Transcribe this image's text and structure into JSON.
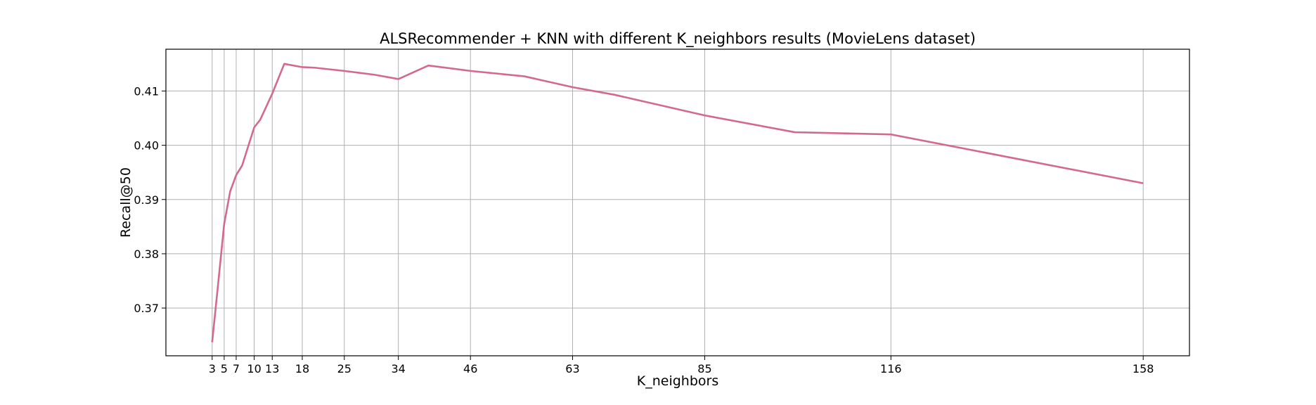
{
  "chart_data": {
    "type": "line",
    "title": "ALSRecommender + KNN with different K_neighbors results (MovieLens dataset)",
    "xlabel": "K_neighbors",
    "ylabel": "Recall@50",
    "x_ticks": [
      3,
      5,
      7,
      10,
      13,
      18,
      25,
      34,
      46,
      63,
      85,
      116,
      158
    ],
    "y_ticks": [
      0.37,
      0.38,
      0.39,
      0.4,
      0.41
    ],
    "y_tick_labels": [
      "0.37",
      "0.38",
      "0.39",
      "0.40",
      "0.41"
    ],
    "xlim": [
      -4.7,
      165.7
    ],
    "ylim": [
      0.3612,
      0.4177
    ],
    "grid": true,
    "series": [
      {
        "color": "#d4698f",
        "x": [
          3,
          4,
          5,
          6,
          7,
          8,
          10,
          11,
          13,
          15,
          18,
          20,
          25,
          30,
          34,
          39,
          46,
          55,
          63,
          70,
          85,
          100,
          116,
          158
        ],
        "y": [
          0.3637,
          0.3745,
          0.3855,
          0.3915,
          0.3945,
          0.3963,
          0.4033,
          0.4047,
          0.4095,
          0.415,
          0.4144,
          0.4143,
          0.4137,
          0.413,
          0.4122,
          0.4147,
          0.4137,
          0.4127,
          0.4107,
          0.4093,
          0.4055,
          0.4024,
          0.402,
          0.393
        ]
      }
    ]
  }
}
